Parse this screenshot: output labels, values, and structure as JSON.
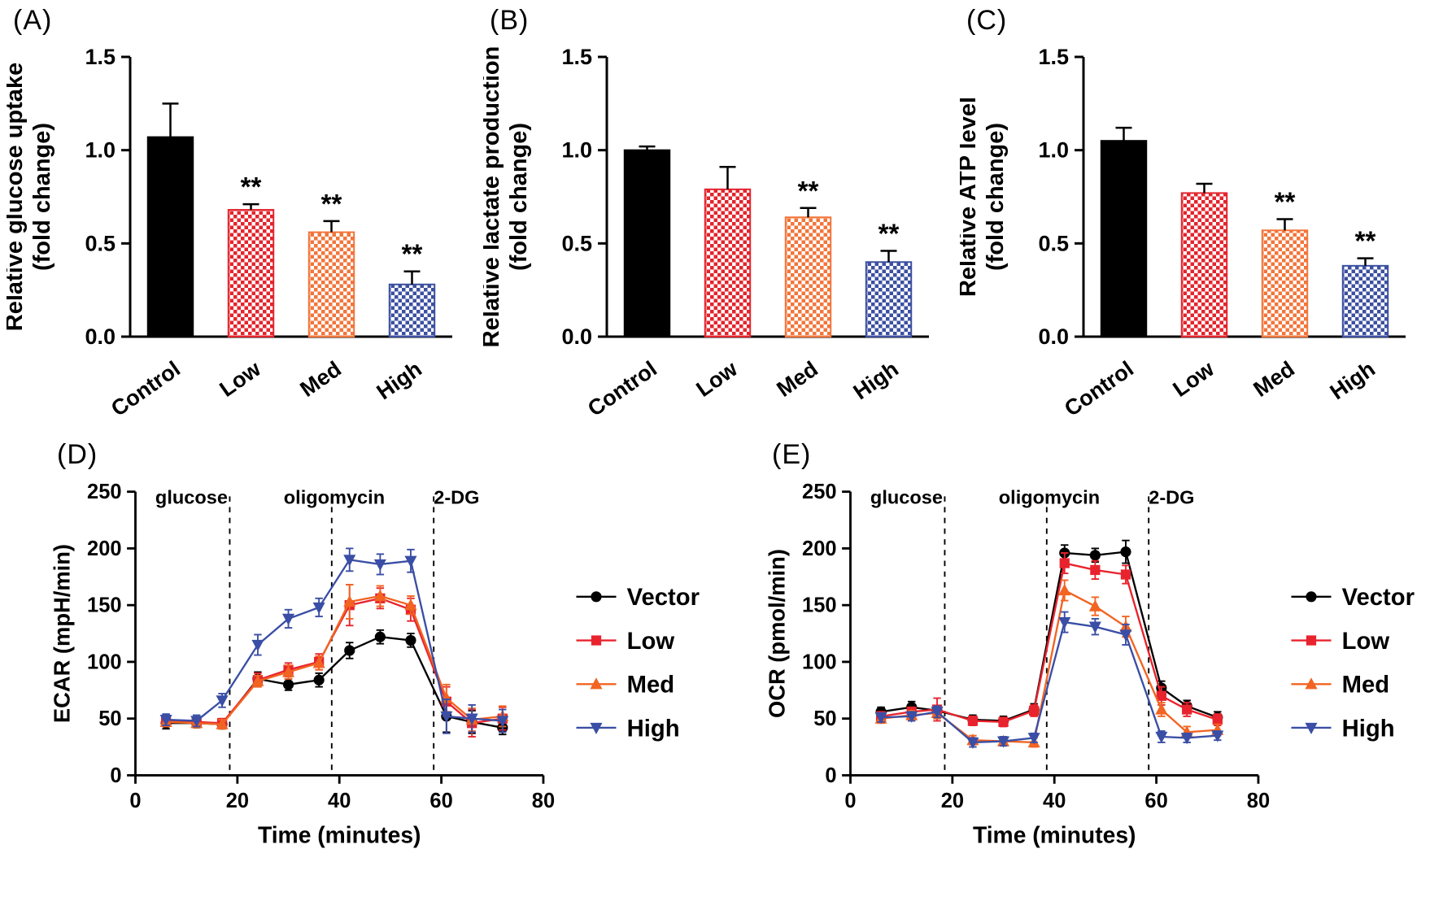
{
  "chart_data": [
    {
      "id": "A",
      "panel_label": "(A)",
      "type": "bar",
      "ylabel": "Relative glucose uptake|(fold change)",
      "categories": [
        "Control",
        "Low",
        "Med",
        "High"
      ],
      "values": [
        1.07,
        0.68,
        0.56,
        0.28
      ],
      "errors": [
        0.18,
        0.03,
        0.06,
        0.07
      ],
      "significance": [
        "",
        "**",
        "**",
        "**"
      ],
      "ylim": [
        0,
        1.5
      ],
      "yticks": [
        0,
        0.5,
        1,
        1.5
      ],
      "ytick_decimals": 1,
      "patterns": [
        "solid",
        "checker",
        "checker",
        "checker"
      ],
      "colors": [
        "#000000",
        "#e3242d",
        "#f2753a",
        "#3c50a0"
      ]
    },
    {
      "id": "B",
      "panel_label": "(B)",
      "type": "bar",
      "ylabel": "Relative lactate production|(fold change)",
      "categories": [
        "Control",
        "Low",
        "Med",
        "High"
      ],
      "values": [
        1.0,
        0.79,
        0.64,
        0.4
      ],
      "errors": [
        0.02,
        0.12,
        0.05,
        0.06
      ],
      "significance": [
        "",
        "",
        "**",
        "**"
      ],
      "ylim": [
        0,
        1.5
      ],
      "yticks": [
        0,
        0.5,
        1,
        1.5
      ],
      "ytick_decimals": 1,
      "patterns": [
        "solid",
        "checker",
        "checker",
        "checker"
      ],
      "colors": [
        "#000000",
        "#e3242d",
        "#f2753a",
        "#3c50a0"
      ]
    },
    {
      "id": "C",
      "panel_label": "(C)",
      "type": "bar",
      "ylabel": "Relative ATP level|(fold change)",
      "categories": [
        "Control",
        "Low",
        "Med",
        "High"
      ],
      "values": [
        1.05,
        0.77,
        0.57,
        0.38
      ],
      "errors": [
        0.07,
        0.05,
        0.06,
        0.04
      ],
      "significance": [
        "",
        "",
        "**",
        "**"
      ],
      "ylim": [
        0,
        1.5
      ],
      "yticks": [
        0,
        0.5,
        1,
        1.5
      ],
      "ytick_decimals": 1,
      "patterns": [
        "solid",
        "checker",
        "checker",
        "checker"
      ],
      "colors": [
        "#000000",
        "#e3242d",
        "#f2753a",
        "#3c50a0"
      ]
    },
    {
      "id": "D",
      "panel_label": "(D)",
      "type": "line",
      "xlabel": "Time (minutes)",
      "ylabel": "ECAR (mpH/min)",
      "xlim": [
        0,
        80
      ],
      "ylim": [
        0,
        250
      ],
      "xticks": [
        0,
        20,
        40,
        60,
        80
      ],
      "yticks": [
        0,
        50,
        100,
        150,
        200,
        250
      ],
      "vlines": [
        18.5,
        38.5,
        58.5
      ],
      "annotations": [
        {
          "text": "glucose",
          "x": 11
        },
        {
          "text": "oligomycin",
          "x": 39
        },
        {
          "text": "2-DG",
          "x": 63
        }
      ],
      "x": [
        6,
        12,
        17,
        24,
        30,
        36,
        42,
        48,
        54,
        61,
        66,
        72
      ],
      "series": [
        {
          "name": "Vector",
          "color": "#000000",
          "marker": "circle",
          "values": [
            46,
            46,
            45,
            85,
            80,
            84,
            110,
            122,
            119,
            52,
            47,
            42
          ],
          "errors": [
            5,
            4,
            4,
            6,
            5,
            6,
            7,
            6,
            6,
            14,
            10,
            6
          ]
        },
        {
          "name": "Low",
          "color": "#e8232d",
          "marker": "square",
          "values": [
            48,
            47,
            46,
            84,
            93,
            100,
            150,
            156,
            146,
            65,
            46,
            50
          ],
          "errors": [
            5,
            4,
            4,
            6,
            6,
            7,
            18,
            9,
            10,
            13,
            12,
            10
          ]
        },
        {
          "name": "Med",
          "color": "#f26422",
          "marker": "triangle-up",
          "values": [
            47,
            46,
            45,
            83,
            91,
            99,
            153,
            158,
            150,
            68,
            49,
            52
          ],
          "errors": [
            4,
            4,
            4,
            5,
            6,
            6,
            15,
            9,
            8,
            12,
            10,
            9
          ]
        },
        {
          "name": "High",
          "color": "#3a4ea5",
          "marker": "triangle-down",
          "values": [
            49,
            48,
            66,
            115,
            138,
            148,
            190,
            186,
            189,
            52,
            50,
            48
          ],
          "errors": [
            5,
            5,
            6,
            9,
            8,
            8,
            10,
            9,
            10,
            15,
            12,
            10
          ]
        }
      ],
      "legend_position": "right"
    },
    {
      "id": "E",
      "panel_label": "(E)",
      "type": "line",
      "xlabel": "Time (minutes)",
      "ylabel": "OCR (pmol/min)",
      "xlim": [
        0,
        80
      ],
      "ylim": [
        0,
        250
      ],
      "xticks": [
        0,
        20,
        40,
        60,
        80
      ],
      "yticks": [
        0,
        50,
        100,
        150,
        200,
        250
      ],
      "vlines": [
        18.5,
        38.5,
        58.5
      ],
      "annotations": [
        {
          "text": "glucose",
          "x": 11
        },
        {
          "text": "oligomycin",
          "x": 39
        },
        {
          "text": "2-DG",
          "x": 63
        }
      ],
      "x": [
        6,
        12,
        17,
        24,
        30,
        36,
        42,
        48,
        54,
        61,
        66,
        72
      ],
      "series": [
        {
          "name": "Vector",
          "color": "#000000",
          "marker": "circle",
          "values": [
            56,
            60,
            57,
            49,
            48,
            58,
            196,
            194,
            197,
            77,
            61,
            51
          ],
          "errors": [
            4,
            5,
            4,
            4,
            4,
            5,
            7,
            6,
            10,
            6,
            5,
            5
          ]
        },
        {
          "name": "Low",
          "color": "#e8232d",
          "marker": "square",
          "values": [
            52,
            56,
            58,
            48,
            47,
            57,
            187,
            181,
            177,
            70,
            58,
            49
          ],
          "errors": [
            4,
            4,
            10,
            4,
            4,
            5,
            9,
            8,
            8,
            8,
            6,
            5
          ]
        },
        {
          "name": "Med",
          "color": "#f26422",
          "marker": "triangle-up",
          "values": [
            50,
            53,
            55,
            31,
            30,
            29,
            163,
            149,
            131,
            58,
            38,
            40
          ],
          "errors": [
            4,
            4,
            5,
            4,
            4,
            4,
            9,
            8,
            9,
            6,
            5,
            5
          ]
        },
        {
          "name": "High",
          "color": "#3a4ea5",
          "marker": "triangle-down",
          "values": [
            51,
            52,
            56,
            29,
            30,
            33,
            135,
            131,
            124,
            34,
            33,
            35
          ],
          "errors": [
            4,
            4,
            5,
            4,
            4,
            4,
            9,
            7,
            9,
            5,
            4,
            4
          ]
        }
      ],
      "legend_position": "right"
    }
  ]
}
